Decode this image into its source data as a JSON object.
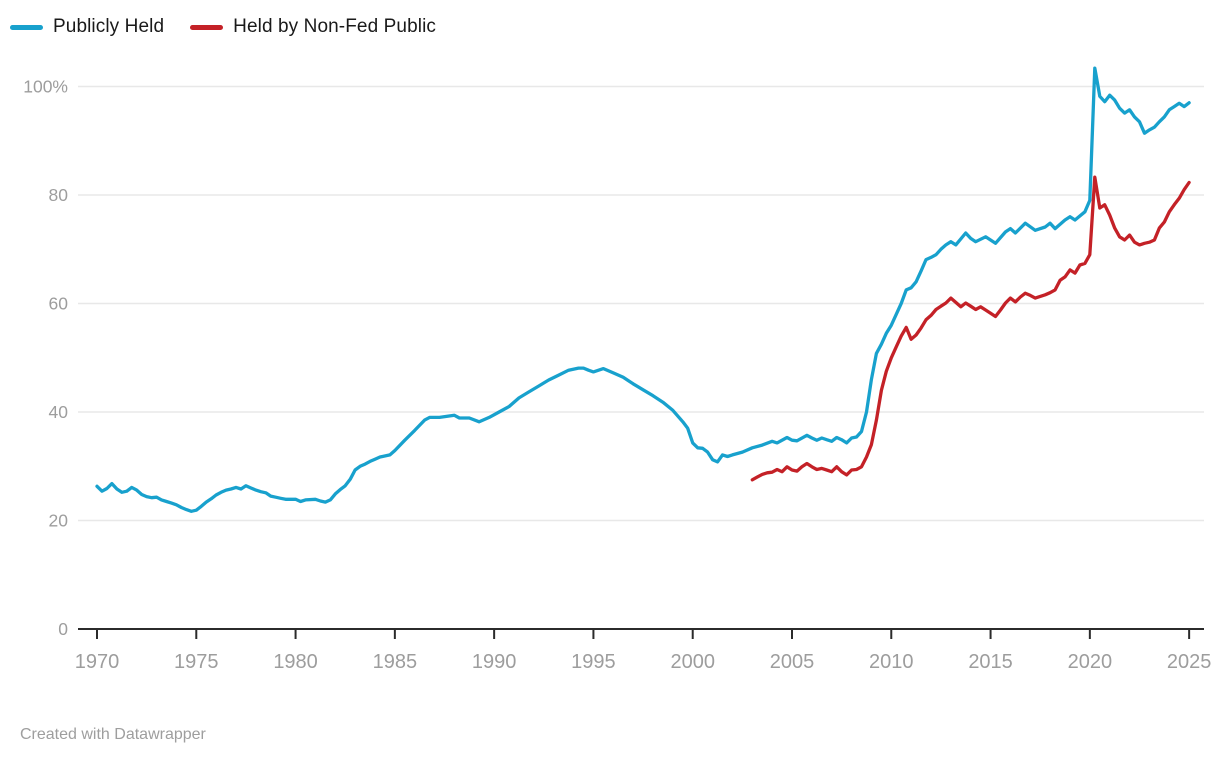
{
  "legend": {
    "items": [
      {
        "label": "Publicly Held",
        "color": "#18a1cd"
      },
      {
        "label": "Held by Non-Fed Public",
        "color": "#c42127"
      }
    ]
  },
  "footer": {
    "text": "Created with Datawrapper"
  },
  "colors": {
    "background": "#ffffff",
    "gridline": "#e8e8e8",
    "axis_line": "#2b2b2b",
    "tick_label": "#9d9d9d",
    "legend_text": "#1a1a1a"
  },
  "chart_data": {
    "type": "line",
    "title": "",
    "xlabel": "",
    "ylabel": "",
    "unit": "%",
    "grid": true,
    "legend_position": "top-left",
    "xlim": [
      1969,
      2026
    ],
    "ylim": [
      0,
      105
    ],
    "x_ticks": [
      1970,
      1975,
      1980,
      1985,
      1990,
      1995,
      2000,
      2005,
      2010,
      2015,
      2020,
      2025
    ],
    "y_ticks": [
      0,
      20,
      40,
      60,
      80,
      100
    ],
    "y_tick_labels": [
      "0",
      "20",
      "40",
      "60",
      "80",
      "100%"
    ],
    "series": [
      {
        "name": "Publicly Held",
        "color": "#18a1cd",
        "points": [
          [
            1970.0,
            26.3
          ],
          [
            1970.25,
            25.4
          ],
          [
            1970.5,
            25.9
          ],
          [
            1970.75,
            26.8
          ],
          [
            1971.0,
            25.8
          ],
          [
            1971.25,
            25.2
          ],
          [
            1971.5,
            25.4
          ],
          [
            1971.75,
            26.1
          ],
          [
            1972.0,
            25.6
          ],
          [
            1972.25,
            24.8
          ],
          [
            1972.5,
            24.4
          ],
          [
            1972.75,
            24.2
          ],
          [
            1973.0,
            24.3
          ],
          [
            1973.25,
            23.8
          ],
          [
            1973.5,
            23.5
          ],
          [
            1973.75,
            23.2
          ],
          [
            1974.0,
            22.9
          ],
          [
            1974.25,
            22.4
          ],
          [
            1974.5,
            22.0
          ],
          [
            1974.75,
            21.7
          ],
          [
            1975.0,
            21.9
          ],
          [
            1975.25,
            22.6
          ],
          [
            1975.5,
            23.4
          ],
          [
            1975.75,
            24.0
          ],
          [
            1976.0,
            24.7
          ],
          [
            1976.25,
            25.2
          ],
          [
            1976.5,
            25.6
          ],
          [
            1976.75,
            25.8
          ],
          [
            1977.0,
            26.1
          ],
          [
            1977.25,
            25.8
          ],
          [
            1977.5,
            26.4
          ],
          [
            1977.75,
            26.0
          ],
          [
            1978.0,
            25.6
          ],
          [
            1978.25,
            25.3
          ],
          [
            1978.5,
            25.1
          ],
          [
            1978.75,
            24.5
          ],
          [
            1979.0,
            24.3
          ],
          [
            1979.25,
            24.1
          ],
          [
            1979.5,
            23.9
          ],
          [
            1980.0,
            23.9
          ],
          [
            1980.25,
            23.5
          ],
          [
            1980.5,
            23.8
          ],
          [
            1981.0,
            23.9
          ],
          [
            1981.25,
            23.6
          ],
          [
            1981.5,
            23.4
          ],
          [
            1981.75,
            23.8
          ],
          [
            1982.0,
            24.9
          ],
          [
            1982.25,
            25.7
          ],
          [
            1982.5,
            26.4
          ],
          [
            1982.75,
            27.6
          ],
          [
            1983.0,
            29.3
          ],
          [
            1983.25,
            30.0
          ],
          [
            1983.5,
            30.4
          ],
          [
            1983.75,
            30.9
          ],
          [
            1984.0,
            31.3
          ],
          [
            1984.25,
            31.7
          ],
          [
            1984.75,
            32.1
          ],
          [
            1985.0,
            32.9
          ],
          [
            1985.5,
            34.8
          ],
          [
            1986.0,
            36.6
          ],
          [
            1986.5,
            38.5
          ],
          [
            1986.75,
            39.0
          ],
          [
            1987.25,
            39.0
          ],
          [
            1988.0,
            39.4
          ],
          [
            1988.25,
            38.9
          ],
          [
            1988.75,
            38.9
          ],
          [
            1989.25,
            38.2
          ],
          [
            1989.75,
            39.0
          ],
          [
            1990.25,
            40.0
          ],
          [
            1990.75,
            41.0
          ],
          [
            1991.25,
            42.6
          ],
          [
            1991.75,
            43.7
          ],
          [
            1992.25,
            44.8
          ],
          [
            1992.75,
            45.9
          ],
          [
            1993.25,
            46.8
          ],
          [
            1993.75,
            47.7
          ],
          [
            1994.25,
            48.1
          ],
          [
            1994.5,
            48.1
          ],
          [
            1994.75,
            47.7
          ],
          [
            1995.0,
            47.4
          ],
          [
            1995.5,
            48.0
          ],
          [
            1996.0,
            47.2
          ],
          [
            1996.5,
            46.4
          ],
          [
            1997.0,
            45.2
          ],
          [
            1997.5,
            44.1
          ],
          [
            1998.0,
            43.0
          ],
          [
            1998.5,
            41.8
          ],
          [
            1999.0,
            40.3
          ],
          [
            1999.5,
            38.2
          ],
          [
            1999.75,
            37.0
          ],
          [
            2000.0,
            34.3
          ],
          [
            2000.25,
            33.4
          ],
          [
            2000.5,
            33.3
          ],
          [
            2000.75,
            32.6
          ],
          [
            2001.0,
            31.2
          ],
          [
            2001.25,
            30.8
          ],
          [
            2001.5,
            32.1
          ],
          [
            2001.75,
            31.8
          ],
          [
            2002.0,
            32.1
          ],
          [
            2002.5,
            32.6
          ],
          [
            2003.0,
            33.4
          ],
          [
            2003.5,
            33.9
          ],
          [
            2004.0,
            34.6
          ],
          [
            2004.25,
            34.3
          ],
          [
            2004.75,
            35.3
          ],
          [
            2005.0,
            34.8
          ],
          [
            2005.25,
            34.7
          ],
          [
            2005.75,
            35.7
          ],
          [
            2006.0,
            35.2
          ],
          [
            2006.25,
            34.8
          ],
          [
            2006.5,
            35.2
          ],
          [
            2006.75,
            34.9
          ],
          [
            2007.0,
            34.6
          ],
          [
            2007.25,
            35.3
          ],
          [
            2007.5,
            34.9
          ],
          [
            2007.75,
            34.3
          ],
          [
            2008.0,
            35.2
          ],
          [
            2008.25,
            35.4
          ],
          [
            2008.5,
            36.4
          ],
          [
            2008.75,
            40.0
          ],
          [
            2009.0,
            46.0
          ],
          [
            2009.25,
            50.8
          ],
          [
            2009.5,
            52.5
          ],
          [
            2009.75,
            54.5
          ],
          [
            2010.0,
            56.0
          ],
          [
            2010.25,
            58.0
          ],
          [
            2010.5,
            60.0
          ],
          [
            2010.75,
            62.5
          ],
          [
            2011.0,
            62.9
          ],
          [
            2011.25,
            64.0
          ],
          [
            2011.5,
            66.0
          ],
          [
            2011.75,
            68.1
          ],
          [
            2012.0,
            68.5
          ],
          [
            2012.25,
            69.0
          ],
          [
            2012.5,
            70.0
          ],
          [
            2012.75,
            70.8
          ],
          [
            2013.0,
            71.4
          ],
          [
            2013.25,
            70.8
          ],
          [
            2013.75,
            73.0
          ],
          [
            2014.0,
            72.0
          ],
          [
            2014.25,
            71.4
          ],
          [
            2014.75,
            72.3
          ],
          [
            2015.25,
            71.1
          ],
          [
            2015.75,
            73.2
          ],
          [
            2016.0,
            73.8
          ],
          [
            2016.25,
            73.0
          ],
          [
            2016.75,
            74.8
          ],
          [
            2017.25,
            73.5
          ],
          [
            2017.75,
            74.1
          ],
          [
            2018.0,
            74.8
          ],
          [
            2018.25,
            73.8
          ],
          [
            2018.75,
            75.4
          ],
          [
            2019.0,
            76.0
          ],
          [
            2019.25,
            75.4
          ],
          [
            2019.75,
            76.9
          ],
          [
            2020.0,
            79.0
          ],
          [
            2020.25,
            103.4
          ],
          [
            2020.5,
            98.2
          ],
          [
            2020.75,
            97.2
          ],
          [
            2021.0,
            98.4
          ],
          [
            2021.25,
            97.5
          ],
          [
            2021.5,
            96.0
          ],
          [
            2021.75,
            95.1
          ],
          [
            2022.0,
            95.7
          ],
          [
            2022.25,
            94.4
          ],
          [
            2022.5,
            93.5
          ],
          [
            2022.75,
            91.4
          ],
          [
            2023.0,
            92.0
          ],
          [
            2023.25,
            92.5
          ],
          [
            2023.5,
            93.5
          ],
          [
            2023.75,
            94.4
          ],
          [
            2024.0,
            95.7
          ],
          [
            2024.25,
            96.3
          ],
          [
            2024.5,
            96.9
          ],
          [
            2024.75,
            96.3
          ],
          [
            2025.0,
            97.0
          ]
        ]
      },
      {
        "name": "Held by Non-Fed Public",
        "color": "#c42127",
        "points": [
          [
            2003.0,
            27.5
          ],
          [
            2003.25,
            28.0
          ],
          [
            2003.5,
            28.5
          ],
          [
            2003.75,
            28.8
          ],
          [
            2004.0,
            28.9
          ],
          [
            2004.25,
            29.4
          ],
          [
            2004.5,
            29.0
          ],
          [
            2004.75,
            29.9
          ],
          [
            2005.0,
            29.3
          ],
          [
            2005.25,
            29.1
          ],
          [
            2005.5,
            29.9
          ],
          [
            2005.75,
            30.5
          ],
          [
            2006.0,
            29.9
          ],
          [
            2006.25,
            29.4
          ],
          [
            2006.5,
            29.6
          ],
          [
            2006.75,
            29.3
          ],
          [
            2007.0,
            29.0
          ],
          [
            2007.25,
            29.9
          ],
          [
            2007.5,
            29.0
          ],
          [
            2007.75,
            28.4
          ],
          [
            2008.0,
            29.3
          ],
          [
            2008.25,
            29.4
          ],
          [
            2008.5,
            29.9
          ],
          [
            2008.75,
            31.7
          ],
          [
            2009.0,
            34.0
          ],
          [
            2009.25,
            38.5
          ],
          [
            2009.5,
            44.0
          ],
          [
            2009.75,
            47.5
          ],
          [
            2010.0,
            50.0
          ],
          [
            2010.25,
            52.0
          ],
          [
            2010.5,
            54.0
          ],
          [
            2010.75,
            55.6
          ],
          [
            2011.0,
            53.4
          ],
          [
            2011.25,
            54.2
          ],
          [
            2011.5,
            55.5
          ],
          [
            2011.75,
            57.0
          ],
          [
            2012.0,
            57.8
          ],
          [
            2012.25,
            58.9
          ],
          [
            2012.5,
            59.5
          ],
          [
            2012.75,
            60.1
          ],
          [
            2013.0,
            61.0
          ],
          [
            2013.25,
            60.2
          ],
          [
            2013.5,
            59.4
          ],
          [
            2013.75,
            60.1
          ],
          [
            2014.0,
            59.5
          ],
          [
            2014.25,
            58.9
          ],
          [
            2014.5,
            59.4
          ],
          [
            2014.75,
            58.8
          ],
          [
            2015.0,
            58.2
          ],
          [
            2015.25,
            57.6
          ],
          [
            2015.5,
            58.8
          ],
          [
            2015.75,
            60.1
          ],
          [
            2016.0,
            61.0
          ],
          [
            2016.25,
            60.3
          ],
          [
            2016.5,
            61.2
          ],
          [
            2016.75,
            61.9
          ],
          [
            2017.0,
            61.5
          ],
          [
            2017.25,
            61.0
          ],
          [
            2017.5,
            61.3
          ],
          [
            2017.75,
            61.6
          ],
          [
            2018.0,
            62.0
          ],
          [
            2018.25,
            62.5
          ],
          [
            2018.5,
            64.3
          ],
          [
            2018.75,
            64.9
          ],
          [
            2019.0,
            66.2
          ],
          [
            2019.25,
            65.6
          ],
          [
            2019.5,
            67.1
          ],
          [
            2019.75,
            67.4
          ],
          [
            2020.0,
            69.0
          ],
          [
            2020.25,
            83.3
          ],
          [
            2020.5,
            77.6
          ],
          [
            2020.75,
            78.2
          ],
          [
            2021.0,
            76.3
          ],
          [
            2021.25,
            73.9
          ],
          [
            2021.5,
            72.3
          ],
          [
            2021.75,
            71.7
          ],
          [
            2022.0,
            72.6
          ],
          [
            2022.25,
            71.3
          ],
          [
            2022.5,
            70.8
          ],
          [
            2022.75,
            71.1
          ],
          [
            2023.0,
            71.3
          ],
          [
            2023.25,
            71.7
          ],
          [
            2023.5,
            73.9
          ],
          [
            2023.75,
            75.0
          ],
          [
            2024.0,
            76.9
          ],
          [
            2024.25,
            78.2
          ],
          [
            2024.5,
            79.4
          ],
          [
            2024.75,
            81.0
          ],
          [
            2025.0,
            82.3
          ]
        ]
      }
    ]
  }
}
